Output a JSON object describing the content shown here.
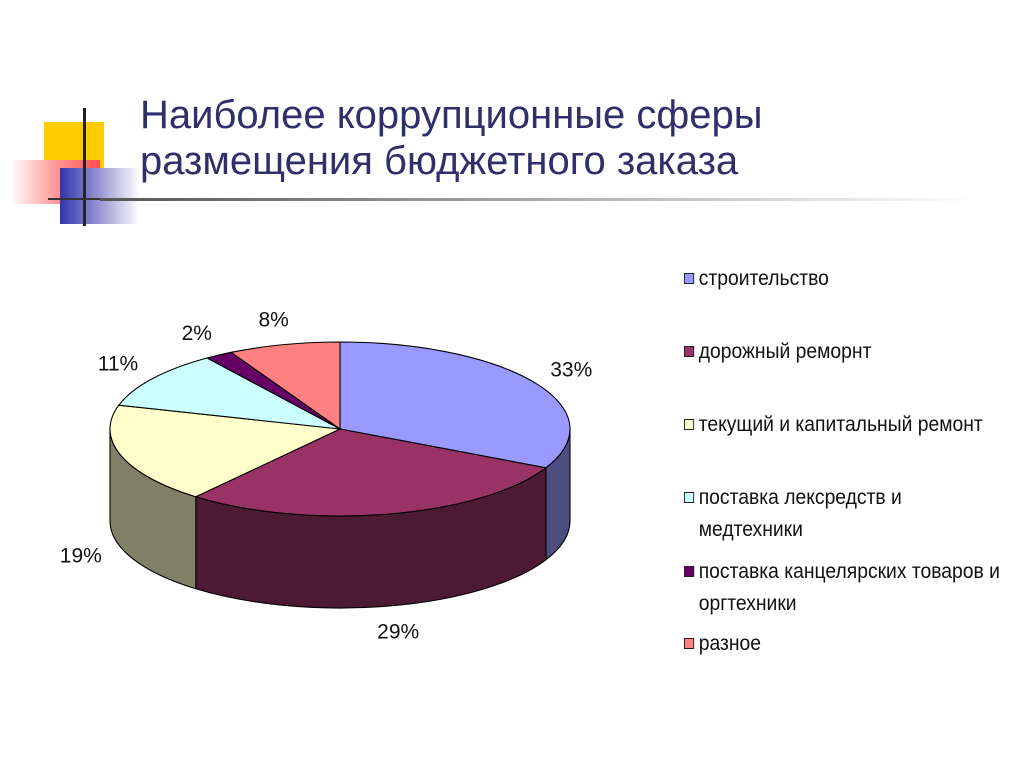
{
  "slide": {
    "title_line1": "Наиболее коррупционные сферы",
    "title_line2": "размещения бюджетного заказа"
  },
  "chart_data": {
    "type": "pie",
    "title": "",
    "categories": [
      "строительство",
      "дорожный реморнт",
      "текущий и капитальный ремонт",
      "поставка лексредств и медтехники",
      "поставка канцелярских товаров и оргтехники",
      "разное"
    ],
    "values": [
      33,
      29,
      19,
      11,
      2,
      8
    ],
    "data_labels": [
      "33%",
      "29%",
      "19%",
      "11%",
      "2%",
      "8%"
    ],
    "colors": [
      "#9999ff",
      "#993366",
      "#ffffcc",
      "#ccffff",
      "#660066",
      "#ff8080"
    ],
    "style": "3d",
    "legend_position": "right"
  }
}
